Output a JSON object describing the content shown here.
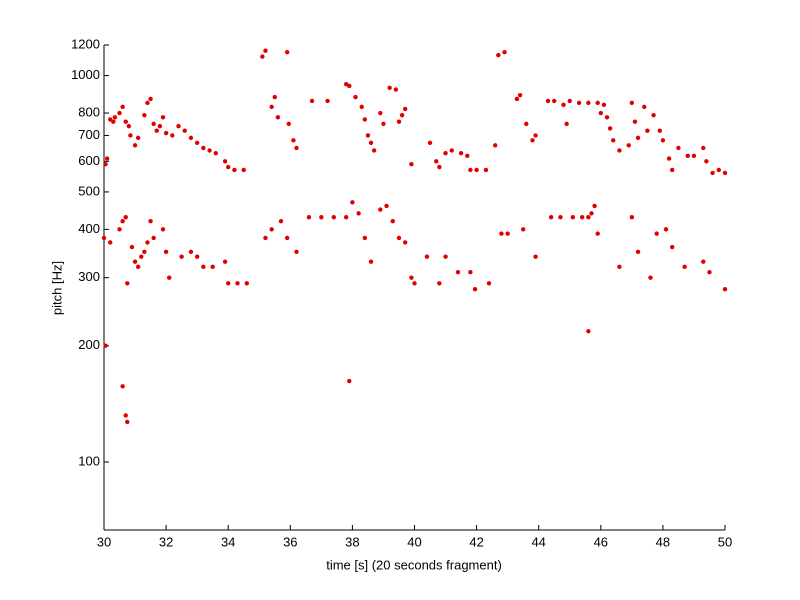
{
  "chart_data": {
    "type": "scatter",
    "x_label": "time [s] (20 seconds fragment)",
    "y_label": "pitch [Hz]",
    "log_y": true,
    "grid": false,
    "xlim": [
      30,
      50
    ],
    "ylim": [
      66.7,
      1200
    ],
    "xticks": [
      30,
      32,
      34,
      36,
      38,
      40,
      42,
      44,
      46,
      48,
      50
    ],
    "yticks": [
      100,
      200,
      300,
      400,
      500,
      600,
      700,
      800,
      1000,
      1200
    ],
    "series": [
      {
        "color": "#e00000",
        "x": [
          30.05,
          30.1,
          30.2,
          30.3,
          30.35,
          30.5,
          30.6,
          30.7,
          30.8,
          30.85,
          31.0,
          31.1,
          31.3,
          31.4,
          31.5,
          31.6,
          31.7,
          31.8,
          31.9,
          32.0,
          32.2,
          32.4,
          32.6,
          32.8,
          33.0,
          33.2,
          33.4,
          33.6,
          33.9,
          34.0,
          34.2,
          34.5,
          35.1,
          35.2,
          35.4,
          35.5,
          35.6,
          35.9,
          35.95,
          36.1,
          36.2,
          36.7,
          37.2,
          37.8,
          37.9,
          38.1,
          38.3,
          38.4,
          38.5,
          38.6,
          38.7,
          38.9,
          39.0,
          39.2,
          39.4,
          39.5,
          39.6,
          39.7,
          39.9,
          40.5,
          40.7,
          40.8,
          41.0,
          41.2,
          41.5,
          41.7,
          41.8,
          42.0,
          42.3,
          42.6,
          42.7,
          42.9,
          43.3,
          43.4,
          43.6,
          43.8,
          43.9,
          44.3,
          44.5,
          44.8,
          44.9,
          45.0,
          45.3,
          45.6,
          45.9,
          46.0,
          46.1,
          46.2,
          46.3,
          46.4,
          46.6,
          46.9,
          47.0,
          47.1,
          47.2,
          47.4,
          47.5,
          47.7,
          47.9,
          48.0,
          48.2,
          48.3,
          48.5,
          48.8,
          49.0,
          49.3,
          49.4,
          49.6,
          49.8,
          50.0,
          30.0,
          30.2,
          30.5,
          30.6,
          30.7,
          30.75,
          30.9,
          31.0,
          31.1,
          31.2,
          31.3,
          31.4,
          31.5,
          31.6,
          31.9,
          32.0,
          32.1,
          32.5,
          32.8,
          33.0,
          33.2,
          33.5,
          33.9,
          34.0,
          34.3,
          34.6,
          35.2,
          35.4,
          35.7,
          35.9,
          36.2,
          36.6,
          37.0,
          37.4,
          37.8,
          38.0,
          38.2,
          38.4,
          38.6,
          38.9,
          39.1,
          39.3,
          39.5,
          39.7,
          39.9,
          40.0,
          40.4,
          40.8,
          41.0,
          41.4,
          41.8,
          41.95,
          42.4,
          42.8,
          43.0,
          43.5,
          43.9,
          44.4,
          44.7,
          45.1,
          45.4,
          45.6,
          45.7,
          45.8,
          45.9,
          46.6,
          47.0,
          47.2,
          47.6,
          47.8,
          48.1,
          48.3,
          48.7,
          49.3,
          49.5,
          50.0,
          30.05,
          30.6,
          30.7,
          30.75,
          37.9,
          45.6
        ],
        "values": [
          590,
          610,
          770,
          760,
          780,
          800,
          830,
          760,
          740,
          700,
          660,
          690,
          790,
          850,
          870,
          750,
          720,
          740,
          780,
          710,
          700,
          740,
          720,
          690,
          670,
          650,
          640,
          630,
          600,
          580,
          570,
          570,
          1120,
          1160,
          830,
          880,
          780,
          1150,
          750,
          680,
          650,
          860,
          860,
          950,
          940,
          880,
          830,
          770,
          700,
          670,
          640,
          800,
          750,
          930,
          920,
          760,
          790,
          820,
          590,
          670,
          600,
          580,
          630,
          640,
          630,
          620,
          570,
          570,
          570,
          660,
          1130,
          1150,
          870,
          890,
          750,
          680,
          700,
          860,
          860,
          840,
          750,
          860,
          850,
          850,
          850,
          800,
          840,
          780,
          730,
          680,
          640,
          660,
          850,
          760,
          690,
          830,
          720,
          790,
          720,
          680,
          610,
          570,
          650,
          620,
          620,
          650,
          600,
          560,
          570,
          560,
          380,
          370,
          400,
          420,
          430,
          290,
          360,
          330,
          320,
          340,
          350,
          370,
          420,
          380,
          400,
          350,
          300,
          340,
          350,
          340,
          320,
          320,
          330,
          290,
          290,
          290,
          380,
          400,
          420,
          380,
          350,
          430,
          430,
          430,
          430,
          470,
          440,
          380,
          330,
          450,
          460,
          420,
          380,
          370,
          300,
          290,
          340,
          290,
          340,
          310,
          310,
          280,
          290,
          390,
          390,
          400,
          340,
          430,
          430,
          430,
          430,
          430,
          440,
          460,
          390,
          320,
          430,
          350,
          300,
          390,
          400,
          360,
          320,
          330,
          310,
          280,
          200,
          157,
          132,
          127,
          162,
          218
        ]
      }
    ]
  }
}
